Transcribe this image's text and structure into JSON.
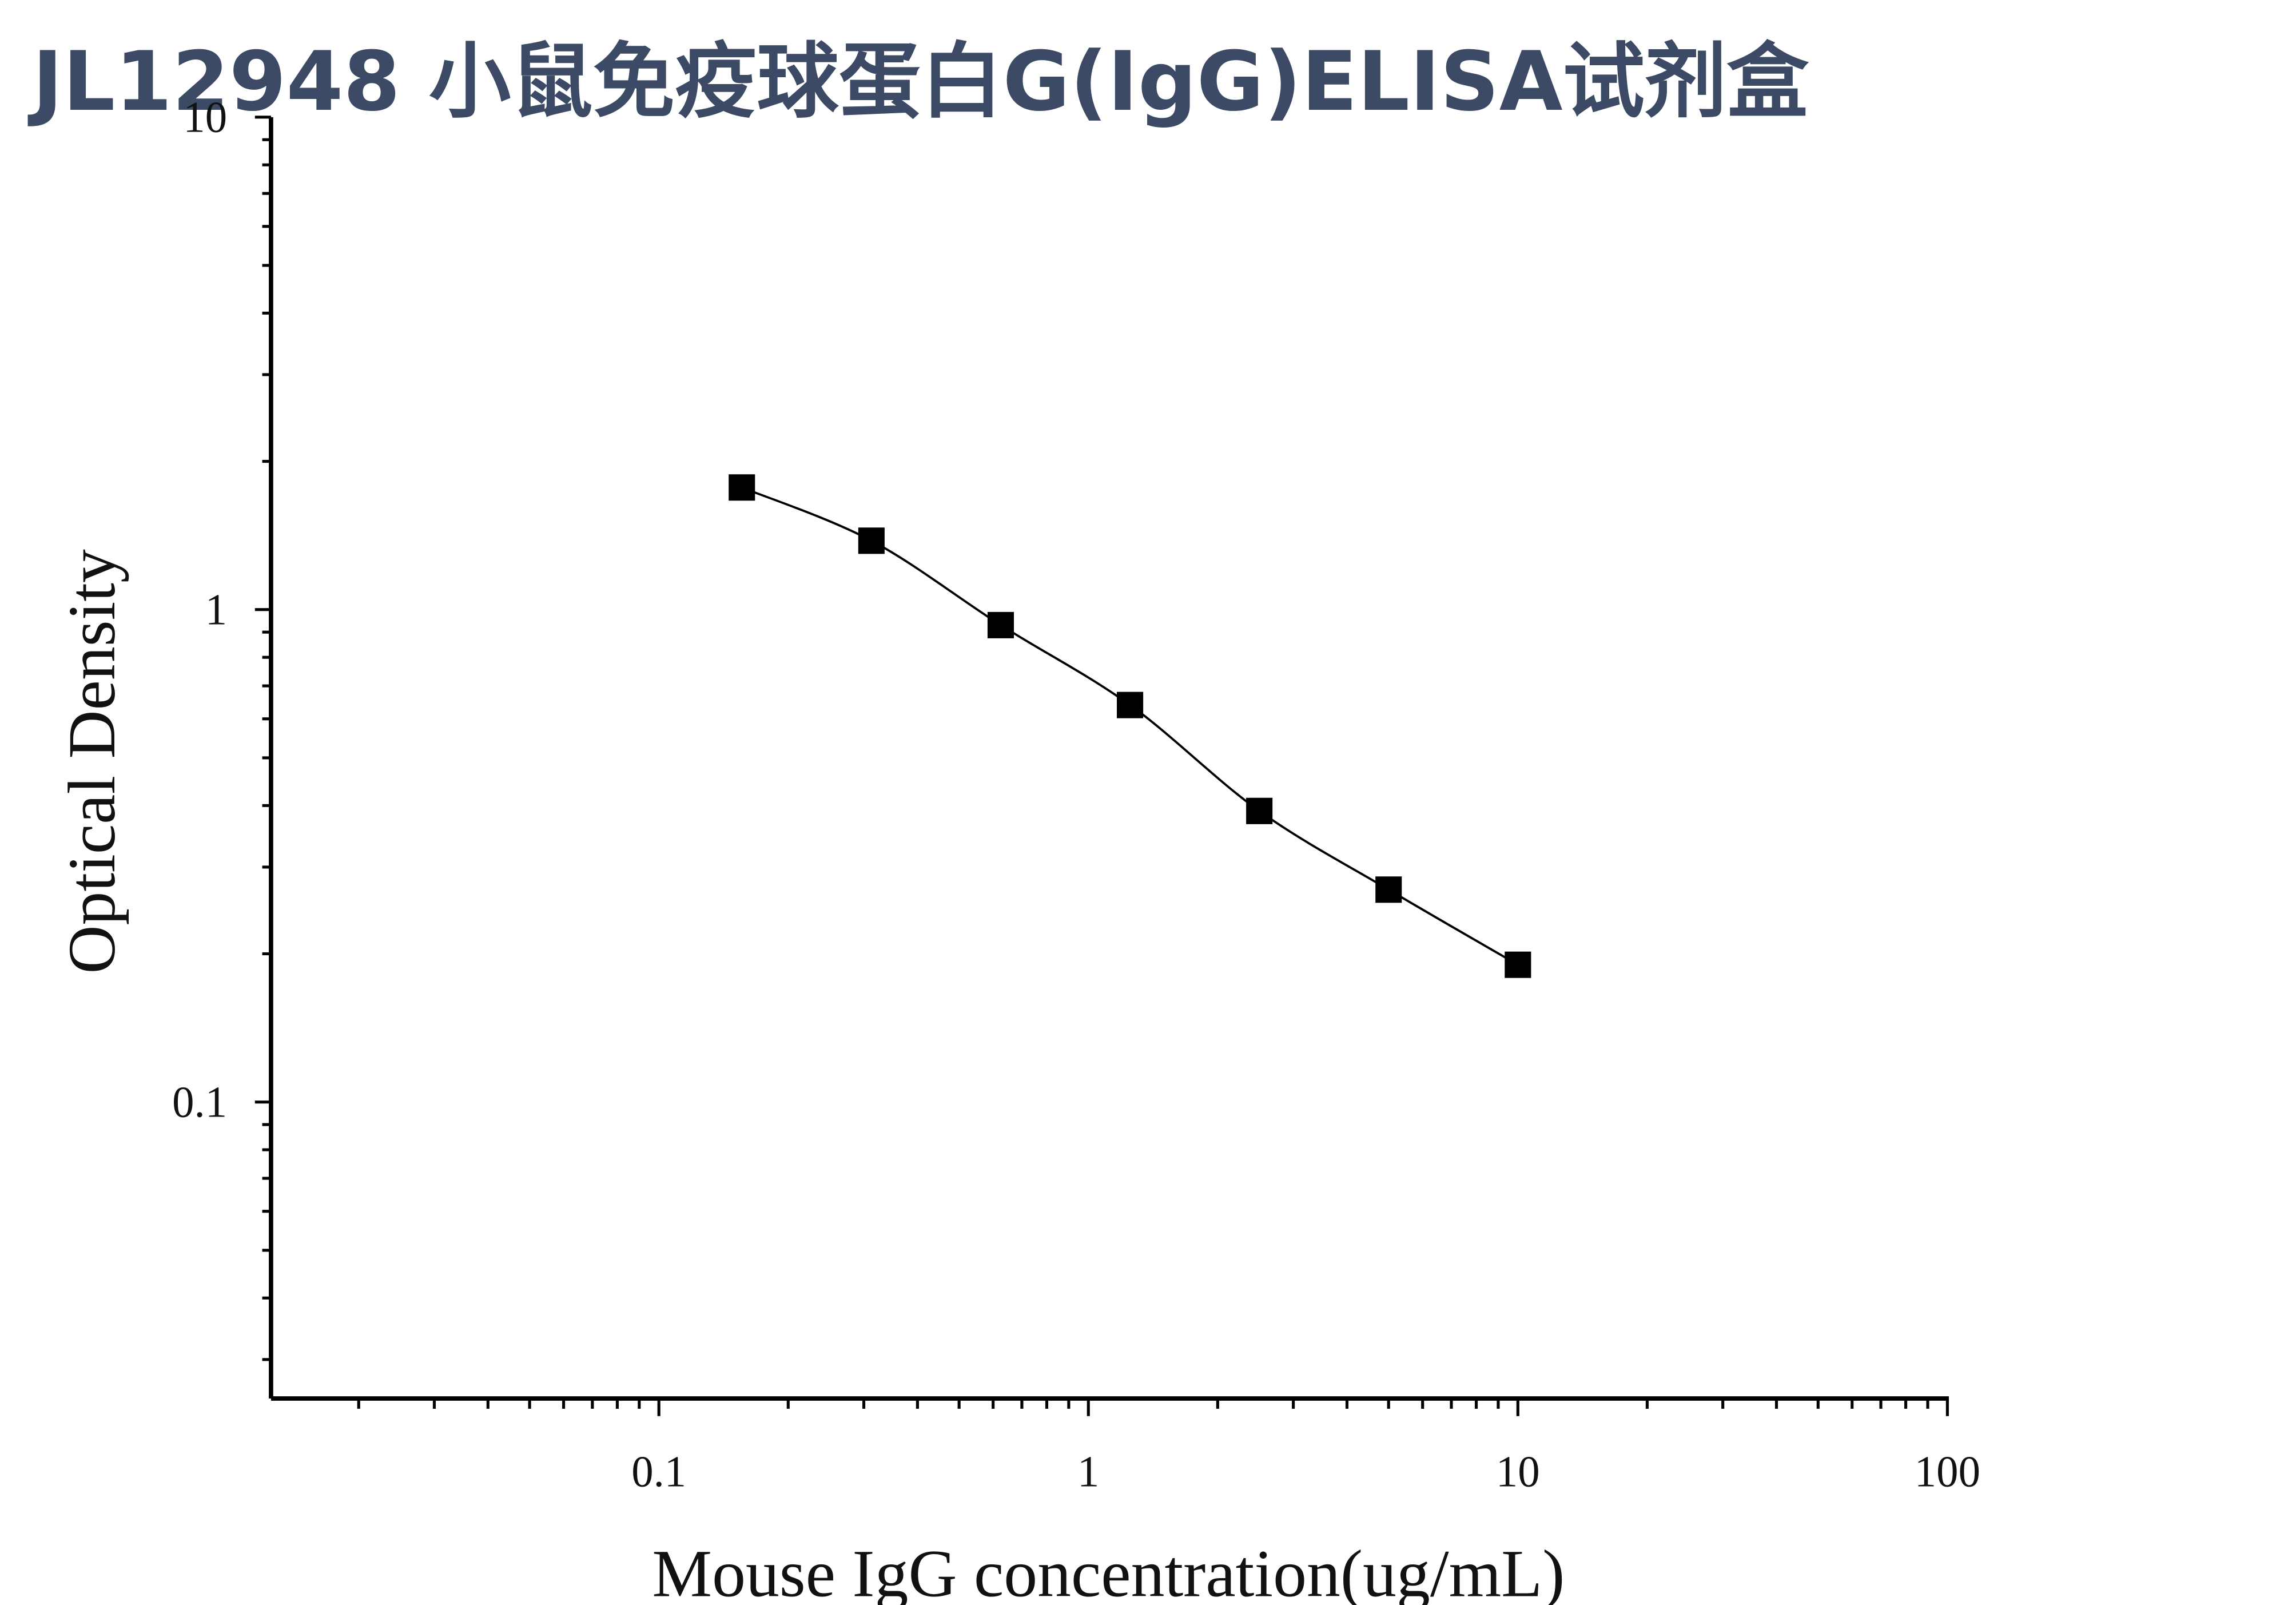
{
  "chart_data": {
    "type": "scatter",
    "title": "JL12948 小鼠免疫球蛋白G(IgG)ELISA试剂盒",
    "x_label": "Mouse IgG concentration(ug/mL)",
    "y_label": "Optical Density",
    "x": [
      0.156,
      0.3125,
      0.625,
      1.25,
      2.5,
      5,
      10
    ],
    "series": [
      {
        "color": "#000000",
        "values": [
          1.77,
          1.38,
          0.93,
          0.64,
          0.39,
          0.27,
          0.19
        ]
      }
    ],
    "xlim": [
      0.0125,
      100
    ],
    "ylim": [
      0.025,
      10
    ],
    "xticks": [
      0.1,
      1,
      10,
      100
    ],
    "yticks": [
      0.1,
      1,
      10
    ],
    "xminorticks": [
      0.02,
      0.03,
      0.04,
      0.05,
      0.06,
      0.07,
      0.08,
      0.09,
      0.2,
      0.3,
      0.4,
      0.5,
      0.6,
      0.7,
      0.8,
      0.9,
      2,
      3,
      4,
      5,
      6,
      7,
      8,
      9,
      20,
      30,
      40,
      50,
      60,
      70,
      80,
      90
    ],
    "yminorticks": [
      0.03,
      0.04,
      0.05,
      0.06,
      0.07,
      0.08,
      0.09,
      0.2,
      0.3,
      0.4,
      0.5,
      0.6,
      0.7,
      0.8,
      0.9,
      2,
      3,
      4,
      5,
      6,
      7,
      8,
      9
    ],
    "xscale": "log",
    "yscale": "log",
    "grid": false
  }
}
